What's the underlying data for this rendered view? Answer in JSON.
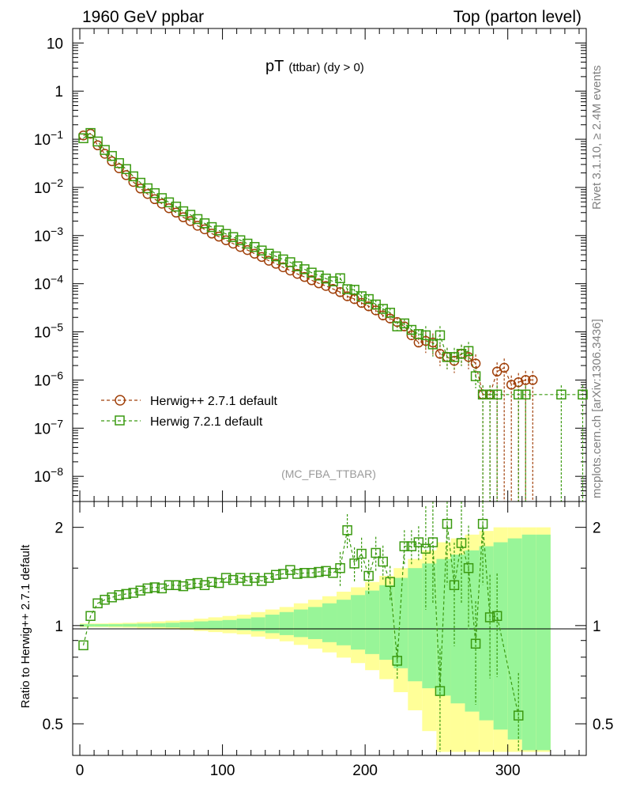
{
  "header": {
    "left": "1960 GeV ppbar",
    "right": "Top (parton level)"
  },
  "title_main": "pT",
  "title_sub": "(ttbar) (dy > 0)",
  "analysis_tag": "(MC_FBA_TTBAR)",
  "side_text_top": "Rivet 3.1.10, ≥ 2.4M events",
  "side_text_bottom": "mcplots.cern.ch [arXiv:1306.3436]",
  "ratio_ylabel": "Ratio to Herwig++ 2.7.1 default",
  "colors": {
    "herwigpp": "#a0400a",
    "herwig7": "#3a9a10",
    "band_inner": "#98f598",
    "band_outer": "#ffff98"
  },
  "chart_data": [
    {
      "type": "scatter",
      "panel": "main",
      "yscale": "log",
      "xlim": [
        -5,
        355
      ],
      "ylim": [
        3e-09,
        20
      ],
      "ytick_labels": [
        "10",
        "1",
        "10^-1",
        "10^-2",
        "10^-3",
        "10^-4",
        "10^-5",
        "10^-6",
        "10^-7",
        "10^-8"
      ],
      "legend_position": "bottom-left",
      "series": [
        {
          "name": "Herwig++ 2.7.1 default",
          "marker": "circle",
          "x": [
            2.5,
            7.5,
            12.5,
            17.5,
            22.5,
            27.5,
            32.5,
            37.5,
            42.5,
            47.5,
            52.5,
            57.5,
            62.5,
            67.5,
            72.5,
            77.5,
            82.5,
            87.5,
            92.5,
            97.5,
            102.5,
            107.5,
            112.5,
            117.5,
            122.5,
            127.5,
            132.5,
            137.5,
            142.5,
            147.5,
            152.5,
            157.5,
            162.5,
            167.5,
            172.5,
            177.5,
            182.5,
            187.5,
            192.5,
            197.5,
            202.5,
            207.5,
            212.5,
            217.5,
            222.5,
            227.5,
            232.5,
            237.5,
            242.5,
            247.5,
            252.5,
            257.5,
            262.5,
            267.5,
            272.5,
            277.5,
            282.5,
            287.5,
            292.5,
            297.5,
            302.5,
            307.5,
            312.5,
            317.5
          ],
          "y": [
            0.12,
            0.13,
            0.075,
            0.05,
            0.035,
            0.025,
            0.018,
            0.013,
            0.0095,
            0.0073,
            0.0057,
            0.0046,
            0.0037,
            0.003,
            0.0024,
            0.002,
            0.0016,
            0.00135,
            0.0011,
            0.00095,
            0.0008,
            0.00068,
            0.00058,
            0.0005,
            0.00042,
            0.00036,
            0.0003,
            0.00026,
            0.00022,
            0.000188,
            0.00016,
            0.000138,
            0.000118,
            0.000102,
            9e-05,
            7.8e-05,
            6.7e-05,
            5.5e-05,
            4.8e-05,
            4e-05,
            3.4e-05,
            2.8e-05,
            2.2e-05,
            1.9e-05,
            1.6e-05,
            1.3e-05,
            8.5e-06,
            6e-06,
            6.5e-06,
            6e-06,
            3.5e-06,
            3e-06,
            2.5e-06,
            3.5e-06,
            3e-06,
            2.2e-06,
            5e-07,
            5e-07,
            1.5e-06,
            1.8e-06,
            8e-07,
            9e-07,
            1e-06,
            1e-06
          ]
        },
        {
          "name": "Herwig 7.2.1 default",
          "marker": "square",
          "x": [
            2.5,
            7.5,
            12.5,
            17.5,
            22.5,
            27.5,
            32.5,
            37.5,
            42.5,
            47.5,
            52.5,
            57.5,
            62.5,
            67.5,
            72.5,
            77.5,
            82.5,
            87.5,
            92.5,
            97.5,
            102.5,
            107.5,
            112.5,
            117.5,
            122.5,
            127.5,
            132.5,
            137.5,
            142.5,
            147.5,
            152.5,
            157.5,
            162.5,
            167.5,
            172.5,
            177.5,
            182.5,
            187.5,
            192.5,
            197.5,
            202.5,
            207.5,
            212.5,
            217.5,
            222.5,
            227.5,
            232.5,
            237.5,
            242.5,
            247.5,
            252.5,
            257.5,
            262.5,
            267.5,
            272.5,
            277.5,
            282.5,
            287.5,
            292.5,
            307.5,
            312.5,
            337.5,
            352.5
          ],
          "y": [
            0.105,
            0.135,
            0.09,
            0.06,
            0.045,
            0.032,
            0.024,
            0.017,
            0.0125,
            0.0096,
            0.0076,
            0.006,
            0.0049,
            0.004,
            0.0032,
            0.0027,
            0.0022,
            0.0018,
            0.0015,
            0.00128,
            0.00108,
            0.00093,
            0.0008,
            0.00068,
            0.00058,
            0.00049,
            0.00042,
            0.00037,
            0.00032,
            0.00028,
            0.00023,
            0.0002,
            0.00017,
            0.000148,
            0.000128,
            0.000112,
            0.00013,
            7.7e-05,
            7.5e-05,
            5.5e-05,
            4.8e-05,
            3.7e-05,
            3e-05,
            2.5e-05,
            1.3e-05,
            1.5e-05,
            1.1e-05,
            9e-06,
            8.5e-06,
            5.5e-06,
            8.5e-06,
            3e-06,
            3e-06,
            3.5e-06,
            4e-06,
            1.2e-06,
            5e-07,
            5e-07,
            5e-07,
            5e-07,
            5e-07,
            5e-07,
            5e-07
          ]
        }
      ]
    },
    {
      "type": "scatter",
      "panel": "ratio",
      "yscale": "log",
      "xlim": [
        -5,
        355
      ],
      "ylim": [
        0.4,
        2.4
      ],
      "xticks": [
        0,
        100,
        200,
        300
      ],
      "yticks": [
        0.5,
        1,
        2
      ],
      "ylabel": "Ratio to Herwig++ 2.7.1 default",
      "reference_line": 1,
      "series": [
        {
          "name": "Herwig 7.2.1 default",
          "x": [
            2.5,
            7.5,
            12.5,
            17.5,
            22.5,
            27.5,
            32.5,
            37.5,
            42.5,
            47.5,
            52.5,
            57.5,
            62.5,
            67.5,
            72.5,
            77.5,
            82.5,
            87.5,
            92.5,
            97.5,
            102.5,
            107.5,
            112.5,
            117.5,
            122.5,
            127.5,
            132.5,
            137.5,
            142.5,
            147.5,
            152.5,
            157.5,
            162.5,
            167.5,
            172.5,
            177.5,
            182.5,
            187.5,
            192.5,
            197.5,
            202.5,
            207.5,
            212.5,
            217.5,
            222.5,
            227.5,
            232.5,
            237.5,
            242.5,
            247.5,
            252.5,
            257.5,
            262.5,
            267.5,
            272.5,
            277.5,
            282.5,
            287.5,
            292.5,
            307.5
          ],
          "y": [
            0.87,
            1.07,
            1.17,
            1.2,
            1.22,
            1.24,
            1.25,
            1.26,
            1.28,
            1.3,
            1.31,
            1.3,
            1.33,
            1.33,
            1.32,
            1.34,
            1.35,
            1.33,
            1.36,
            1.35,
            1.4,
            1.38,
            1.4,
            1.37,
            1.4,
            1.37,
            1.4,
            1.43,
            1.44,
            1.48,
            1.44,
            1.45,
            1.45,
            1.46,
            1.47,
            1.45,
            1.5,
            1.96,
            1.55,
            1.66,
            1.42,
            1.67,
            1.57,
            1.36,
            0.78,
            1.75,
            1.75,
            1.8,
            1.72,
            1.8,
            0.63,
            2.05,
            1.33,
            1.79,
            1.5,
            0.88,
            2.05,
            1.06,
            1.07,
            0.53
          ]
        }
      ],
      "bands": {
        "x": [
          0,
          10,
          20,
          30,
          40,
          50,
          60,
          70,
          80,
          90,
          100,
          110,
          120,
          130,
          140,
          150,
          160,
          170,
          180,
          190,
          200,
          210,
          220,
          230,
          240,
          250,
          260,
          270,
          280,
          290,
          300,
          310,
          320
        ],
        "inner_half_width": [
          0.01,
          0.01,
          0.01,
          0.012,
          0.014,
          0.016,
          0.02,
          0.025,
          0.03,
          0.035,
          0.04,
          0.05,
          0.06,
          0.08,
          0.1,
          0.12,
          0.14,
          0.17,
          0.2,
          0.24,
          0.28,
          0.33,
          0.4,
          0.5,
          0.55,
          0.6,
          0.65,
          0.7,
          0.75,
          0.8,
          0.85,
          0.9,
          0.9
        ],
        "outer_half_width": [
          0.015,
          0.015,
          0.018,
          0.02,
          0.025,
          0.03,
          0.035,
          0.04,
          0.05,
          0.06,
          0.07,
          0.08,
          0.1,
          0.12,
          0.14,
          0.17,
          0.2,
          0.23,
          0.27,
          0.31,
          0.36,
          0.42,
          0.5,
          0.6,
          0.7,
          0.8,
          0.85,
          0.9,
          0.95,
          1,
          1,
          1,
          1
        ]
      }
    }
  ]
}
